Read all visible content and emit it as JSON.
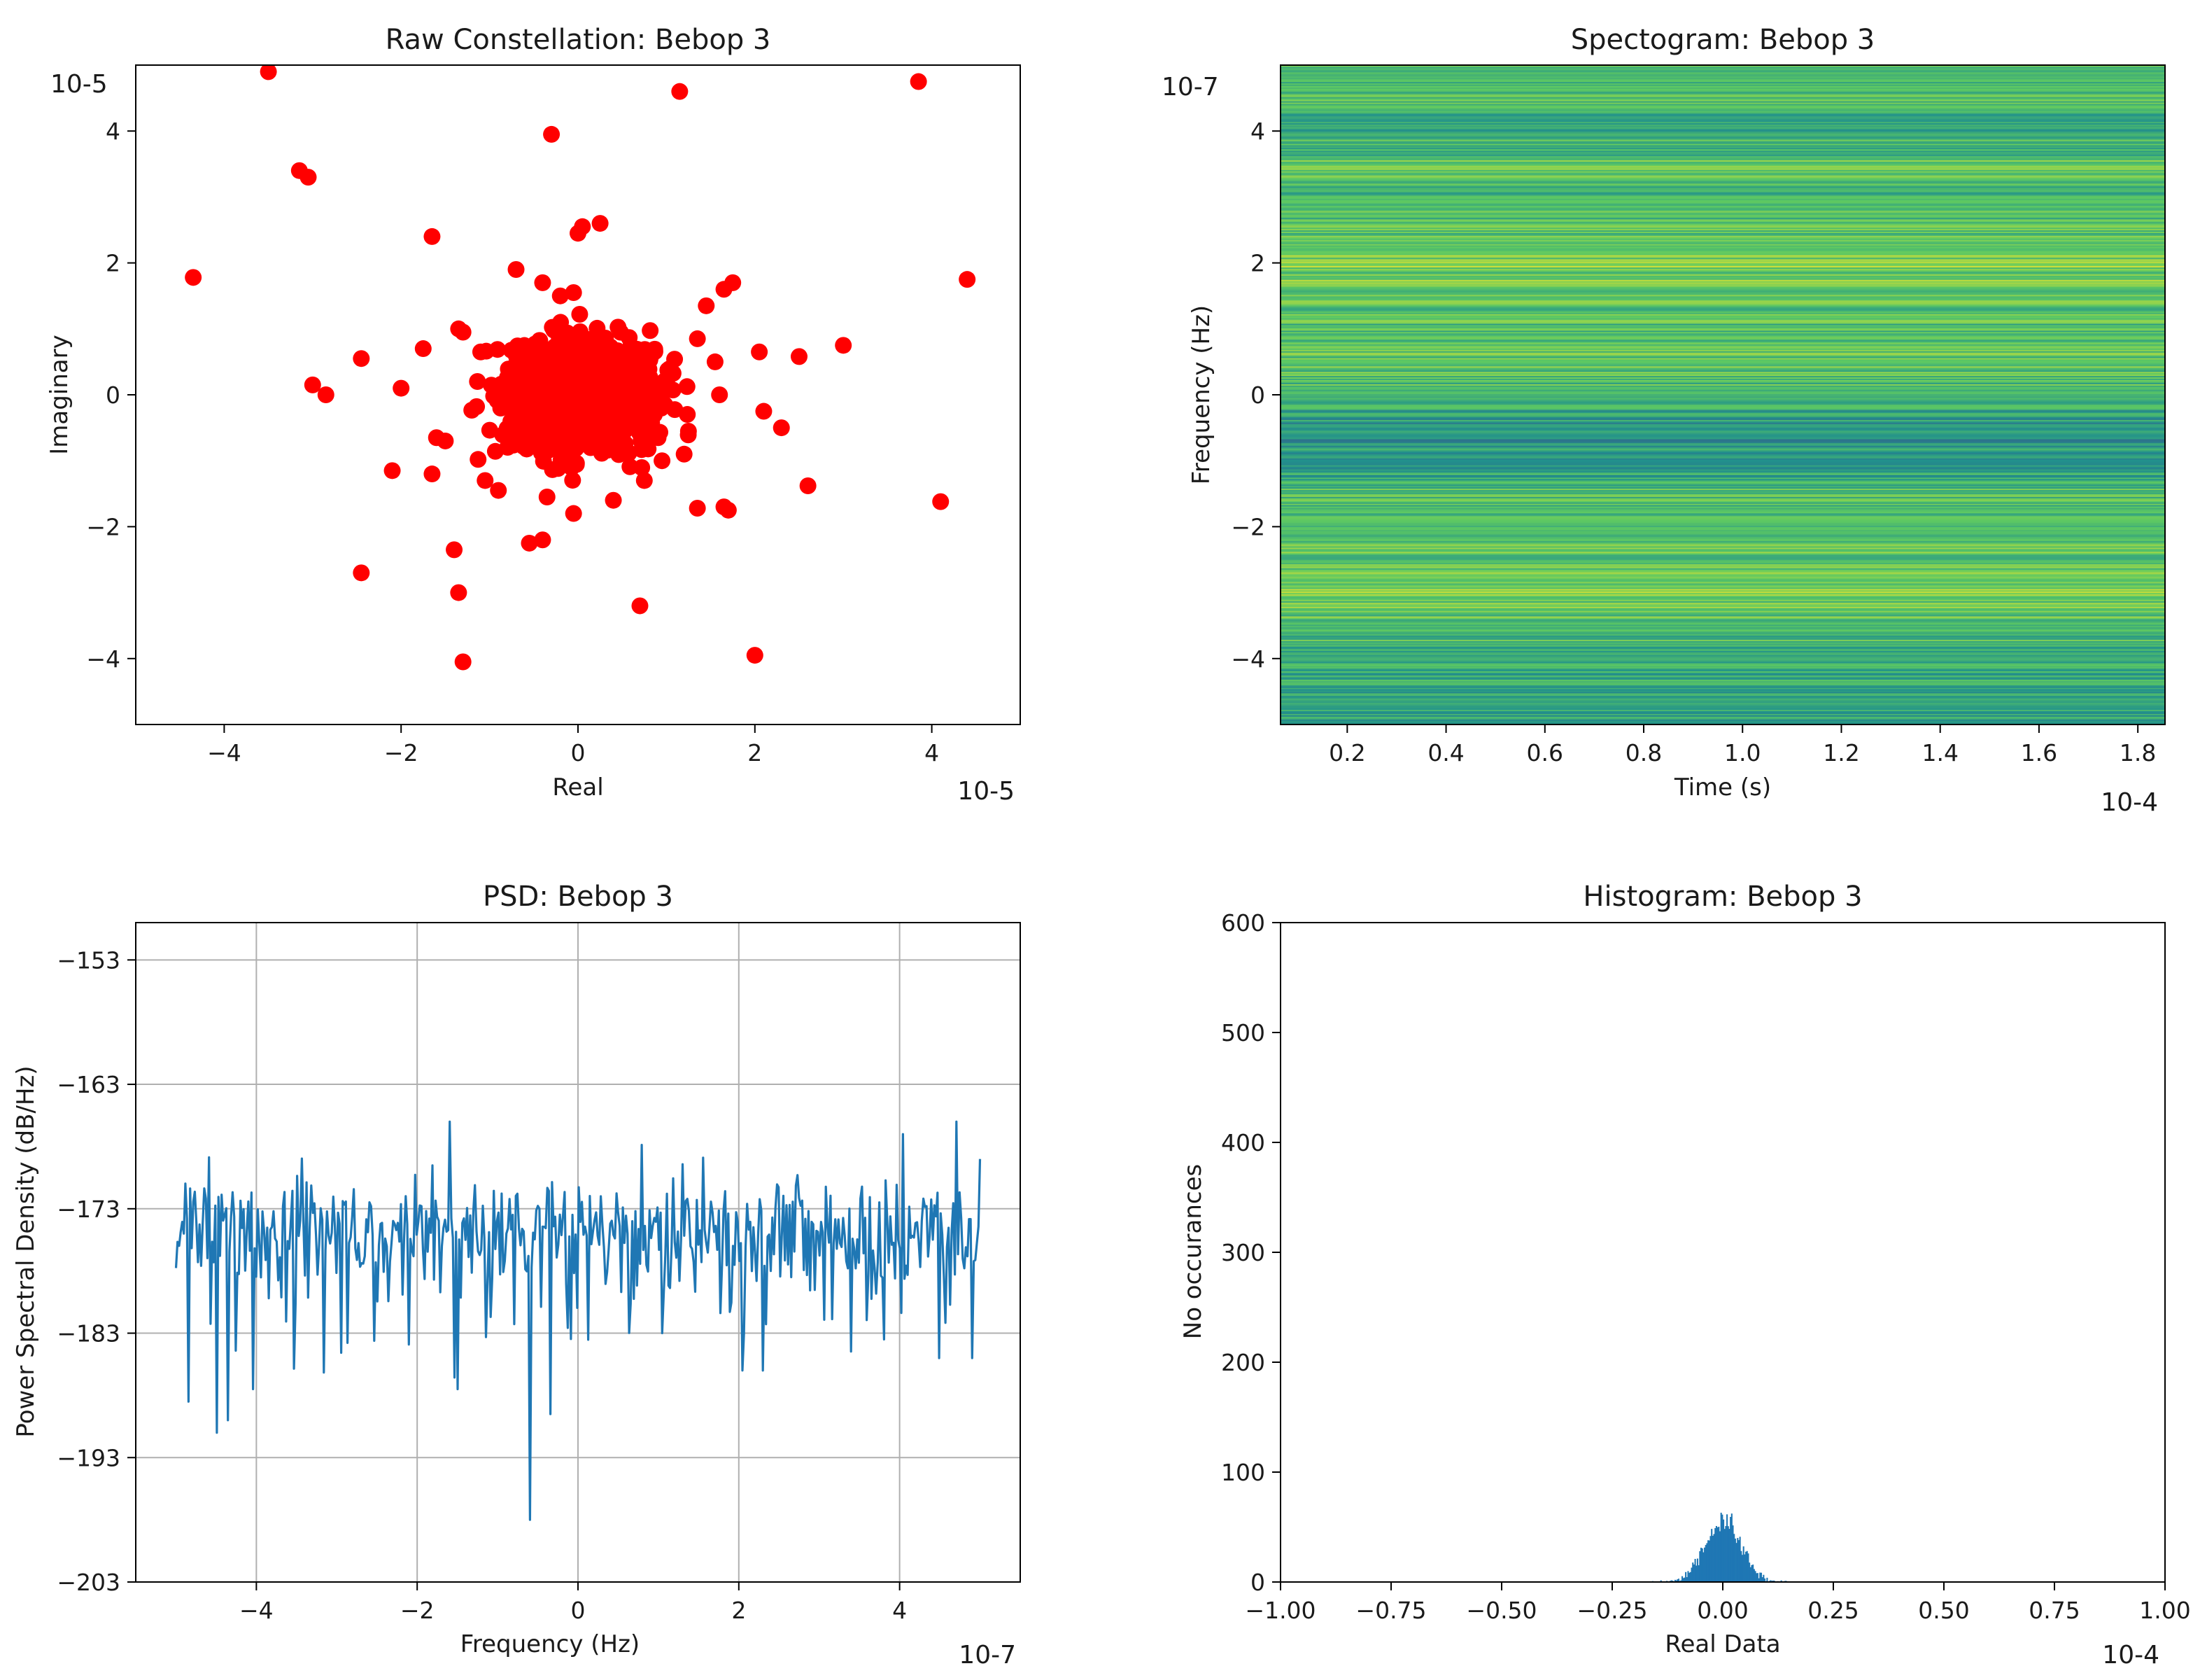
{
  "chart_data": [
    {
      "id": "constellation",
      "type": "scatter",
      "title": "Raw Constellation: Bebop 3",
      "xlabel": "Real",
      "ylabel": "Imaginary",
      "xlim": [
        -5,
        5
      ],
      "ylim": [
        -5,
        5
      ],
      "xticks": [
        -4,
        -2,
        0,
        2,
        4
      ],
      "yticks": [
        -4,
        -2,
        0,
        2,
        4
      ],
      "x_exponent_label": "10-5",
      "y_exponent_label": "10-5",
      "marker_color": "#ff0000",
      "grid": false,
      "outliers": [
        [
          -3.5,
          4.9
        ],
        [
          1.15,
          4.6
        ],
        [
          3.85,
          4.75
        ],
        [
          -0.3,
          3.95
        ],
        [
          -3.15,
          3.4
        ],
        [
          -3.05,
          3.3
        ],
        [
          -4.35,
          1.78
        ],
        [
          4.4,
          1.75
        ],
        [
          -1.65,
          2.4
        ],
        [
          0.25,
          2.6
        ],
        [
          0.05,
          2.55
        ],
        [
          0.0,
          2.45
        ],
        [
          -0.7,
          1.9
        ],
        [
          -0.4,
          1.7
        ],
        [
          -0.2,
          1.5
        ],
        [
          -0.05,
          1.55
        ],
        [
          1.75,
          1.7
        ],
        [
          1.65,
          1.6
        ],
        [
          1.45,
          1.35
        ],
        [
          3.0,
          0.75
        ],
        [
          2.5,
          0.58
        ],
        [
          -2.45,
          0.55
        ],
        [
          -1.75,
          0.7
        ],
        [
          2.05,
          0.65
        ],
        [
          -3.0,
          0.15
        ],
        [
          -2.85,
          0.0
        ],
        [
          -2.0,
          0.1
        ],
        [
          -1.35,
          1.0
        ],
        [
          -1.3,
          0.95
        ],
        [
          1.35,
          0.85
        ],
        [
          1.55,
          0.5
        ],
        [
          1.6,
          0.0
        ],
        [
          2.1,
          -0.25
        ],
        [
          2.3,
          -0.5
        ],
        [
          2.6,
          -1.38
        ],
        [
          4.1,
          -1.62
        ],
        [
          1.65,
          -1.7
        ],
        [
          1.7,
          -1.75
        ],
        [
          1.35,
          -1.72
        ],
        [
          -2.1,
          -1.15
        ],
        [
          -1.65,
          -1.2
        ],
        [
          -0.9,
          -1.45
        ],
        [
          -0.55,
          -2.25
        ],
        [
          -0.4,
          -2.2
        ],
        [
          -0.05,
          -1.8
        ],
        [
          -1.4,
          -2.35
        ],
        [
          -2.45,
          -2.7
        ],
        [
          -1.35,
          -3.0
        ],
        [
          0.7,
          -3.2
        ],
        [
          2.0,
          -3.95
        ],
        [
          -1.3,
          -4.05
        ],
        [
          0.4,
          -1.6
        ],
        [
          0.75,
          -1.3
        ],
        [
          -0.35,
          -1.55
        ],
        [
          -1.05,
          -1.3
        ],
        [
          0.95,
          -1.0
        ],
        [
          -1.5,
          -0.7
        ],
        [
          1.2,
          -0.9
        ],
        [
          -1.6,
          -0.65
        ],
        [
          -1.1,
          0.65
        ]
      ],
      "cluster": {
        "center": [
          0.0,
          0.0
        ],
        "sigma": 0.4,
        "count": 1400
      }
    },
    {
      "id": "spectrogram",
      "type": "heatmap",
      "title": "Spectogram: Bebop 3",
      "xlabel": "Time (s)",
      "ylabel": "Frequency (Hz)",
      "xlim": [
        0.065,
        1.855
      ],
      "ylim": [
        -5,
        5
      ],
      "xticks": [
        0.2,
        0.4,
        0.6,
        0.8,
        1.0,
        1.2,
        1.4,
        1.6,
        1.8
      ],
      "xtick_labels": [
        "0.2",
        "0.4",
        "0.6",
        "0.8",
        "1.0",
        "1.2",
        "1.4",
        "1.6",
        "1.8"
      ],
      "yticks": [
        -4,
        -2,
        0,
        2,
        4
      ],
      "x_exponent_label": "10-4",
      "y_exponent_label": "10-7",
      "colormap": "viridis",
      "rows": 480,
      "band_intensity": [
        [
          -5,
          0.58
        ],
        [
          -4,
          0.62
        ],
        [
          -3,
          0.78
        ],
        [
          -2,
          0.7
        ],
        [
          -1.5,
          0.68
        ],
        [
          -1,
          0.55
        ],
        [
          -0.5,
          0.5
        ],
        [
          0,
          0.66
        ],
        [
          0.5,
          0.72
        ],
        [
          1,
          0.68
        ],
        [
          1.5,
          0.74
        ],
        [
          2,
          0.8
        ],
        [
          2.5,
          0.7
        ],
        [
          3,
          0.66
        ],
        [
          3.5,
          0.72
        ],
        [
          4,
          0.62
        ],
        [
          4.5,
          0.68
        ],
        [
          5,
          0.66
        ]
      ]
    },
    {
      "id": "psd",
      "type": "line",
      "title": "PSD: Bebop 3",
      "xlabel": "Frequency (Hz)",
      "ylabel": "Power Spectral Density (dB/Hz)",
      "xlim": [
        -5.5,
        5.5
      ],
      "ylim": [
        -203,
        -150
      ],
      "xticks": [
        -4,
        -2,
        0,
        2,
        4
      ],
      "yticks": [
        -203,
        -193,
        -183,
        -173,
        -163,
        -153
      ],
      "x_exponent_label": "10-7",
      "line_color": "#1f77b4",
      "grid": true,
      "series": [
        {
          "name": "PSD",
          "x_start": -5,
          "x_end": 5,
          "points": 512,
          "baseline": -175,
          "noise_std": 2.5,
          "notable_points": [
            [
              -4.9,
              -175
            ],
            [
              -4.85,
              -188.5
            ],
            [
              -4.5,
              -191
            ],
            [
              -4.35,
              -190
            ],
            [
              -4.05,
              -187.5
            ],
            [
              -1.6,
              -166
            ],
            [
              -1.5,
              -187.5
            ],
            [
              -0.6,
              -198
            ],
            [
              -0.35,
              -189.5
            ],
            [
              1.05,
              -183
            ],
            [
              2.05,
              -186
            ],
            [
              2.3,
              -186
            ],
            [
              3.8,
              -183.5
            ],
            [
              4.05,
              -167
            ],
            [
              4.5,
              -185
            ],
            [
              4.7,
              -166
            ],
            [
              4.9,
              -185
            ],
            [
              5.0,
              -169
            ]
          ]
        }
      ]
    },
    {
      "id": "histogram",
      "type": "bar",
      "title": "Histogram: Bebop 3",
      "xlabel": "Real Data",
      "ylabel": "No occurances",
      "xlim": [
        -1.0,
        1.0
      ],
      "ylim": [
        0,
        600
      ],
      "xticks": [
        -1.0,
        -0.75,
        -0.5,
        -0.25,
        0.0,
        0.25,
        0.5,
        0.75,
        1.0
      ],
      "xtick_labels": [
        "−1.00",
        "−0.75",
        "−0.50",
        "−0.25",
        "0.00",
        "0.25",
        "0.50",
        "0.75",
        "1.00"
      ],
      "yticks": [
        0,
        100,
        200,
        300,
        400,
        500,
        600
      ],
      "x_exponent_label": "10-4",
      "bar_color": "#1f77b4",
      "grid": false,
      "distribution": {
        "mean": 0.0,
        "sigma": 0.04,
        "peak_count": 55,
        "bins": 120,
        "range": [
          -0.16,
          0.16
        ]
      }
    }
  ]
}
